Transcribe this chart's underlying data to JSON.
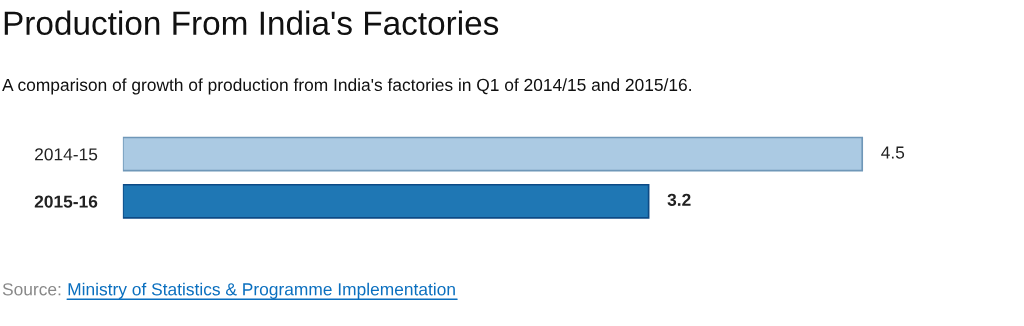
{
  "chart_data": {
    "type": "bar",
    "orientation": "horizontal",
    "title": "Production From India's Factories",
    "subtitle": "A comparison of growth of production from India's factories in Q1 of 2014/15 and 2015/16.",
    "categories": [
      "2014-15",
      "2015-16"
    ],
    "values": [
      4.5,
      3.2
    ],
    "colors": [
      "#abcae3",
      "#1f77b4"
    ],
    "data_labels": true,
    "annotations": [
      "Source:",
      "Ministry of Statistics & Programme Implementation"
    ]
  }
}
